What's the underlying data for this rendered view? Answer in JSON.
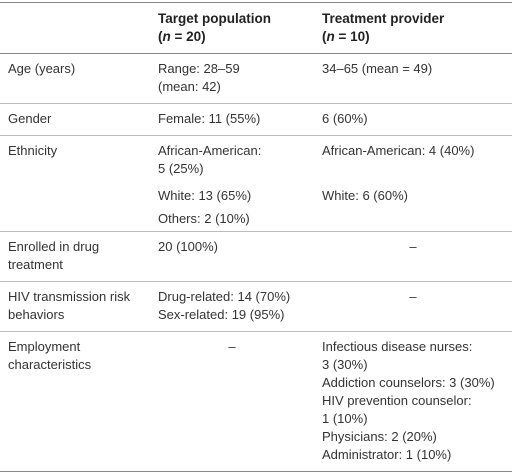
{
  "table": {
    "header": [
      null,
      {
        "title": "Target population",
        "note": [
          "(",
          "n",
          " = 20)"
        ]
      },
      {
        "title": "Treatment provider",
        "note": [
          "(",
          "n",
          " = 10)"
        ]
      }
    ],
    "rows": [
      [
        [
          "Age (years)"
        ],
        [
          "Range: 28–59",
          "(mean: 42)"
        ],
        [
          "34–65 (mean = 49)"
        ]
      ],
      [
        [
          "Gender"
        ],
        [
          "Female: 11 (55%)"
        ],
        [
          "6 (60%)"
        ]
      ],
      [
        [
          "Ethnicity"
        ],
        [
          "African-American:",
          "5 (25%)"
        ],
        [
          "African-American: 4 (40%)"
        ]
      ],
      [
        null,
        [
          "White: 13 (65%)"
        ],
        [
          "White: 6 (60%)"
        ]
      ],
      [
        null,
        [
          "Others: 2 (10%)"
        ],
        null
      ],
      [
        [
          "Enrolled in drug",
          "treatment"
        ],
        [
          "20 (100%)"
        ],
        [
          "–"
        ]
      ],
      [
        [
          "HIV transmission risk",
          "behaviors"
        ],
        [
          "Drug-related: 14 (70%)",
          "Sex-related: 19 (95%)"
        ],
        [
          "–"
        ]
      ],
      [
        [
          "Employment",
          "characteristics"
        ],
        [
          "–"
        ],
        [
          "Infectious disease nurses:",
          "3 (30%)",
          "Addiction counselors: 3 (30%)",
          "HIV prevention counselor:",
          "1 (10%)",
          "Physicians: 2 (20%)",
          "Administrator: 1 (10%)"
        ]
      ]
    ]
  }
}
